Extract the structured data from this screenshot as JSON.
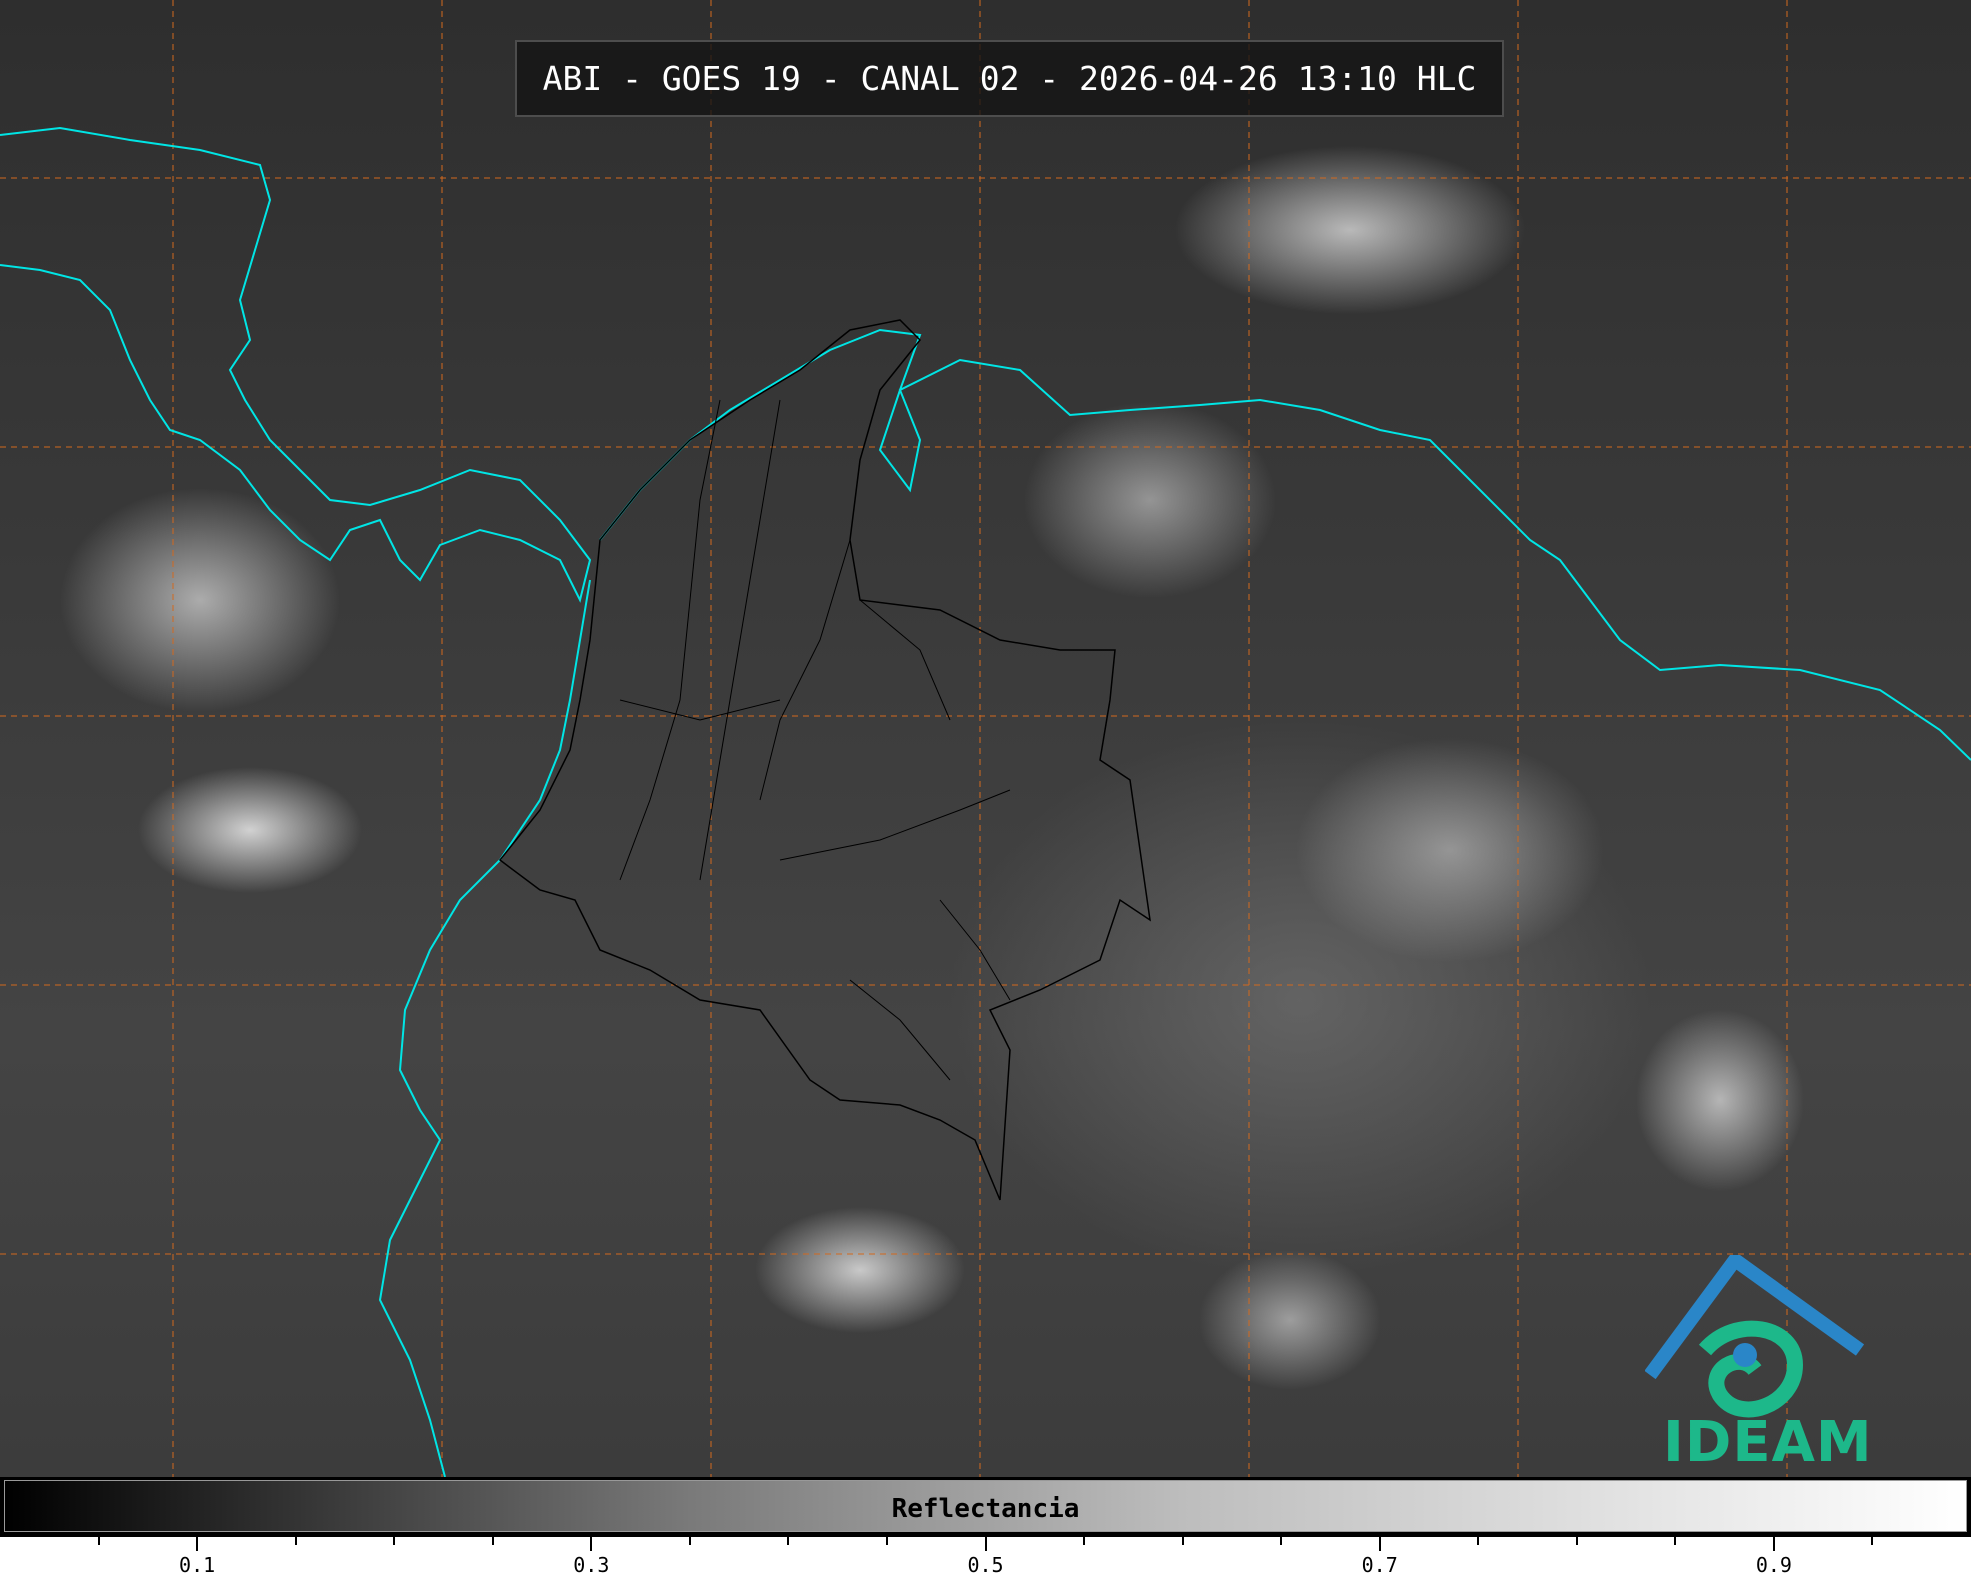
{
  "title": "ABI - GOES 19 - CANAL 02 - 2026-04-26 13:10 HLC",
  "logo": {
    "text": "IDEAM",
    "color": "#1db88a",
    "icon": "ideam-logo"
  },
  "colorbar": {
    "label": "Reflectancia",
    "range": [
      0,
      1
    ],
    "colormap": "grayscale black-to-white",
    "major_ticks": [
      0.1,
      0.3,
      0.5,
      0.7,
      0.9
    ],
    "major_tick_labels": [
      "0.1",
      "0.3",
      "0.5",
      "0.7",
      "0.9"
    ],
    "minor_tick_step": 0.05
  },
  "map": {
    "imagery": "visible-reflectance",
    "coastline_color": "#00e5e5",
    "boundary_color": "#000000",
    "grid_color": "#d2691e",
    "grid_style": "dashed"
  }
}
